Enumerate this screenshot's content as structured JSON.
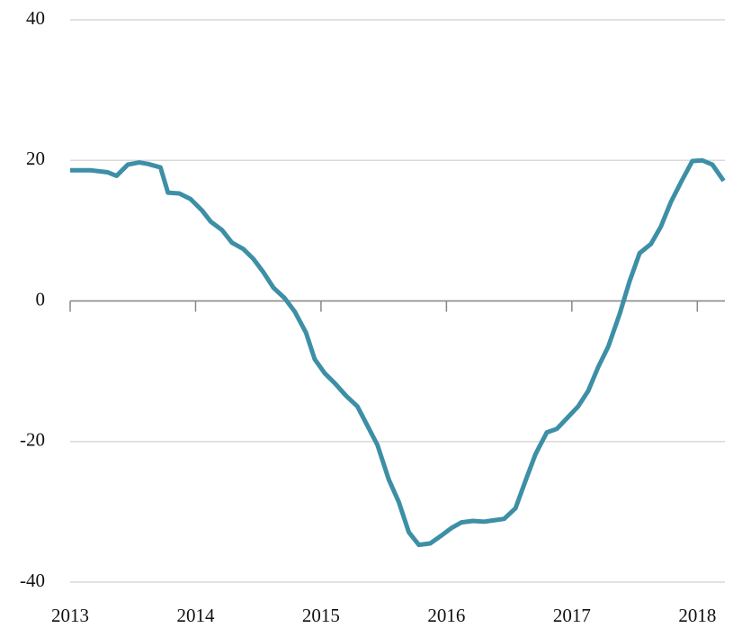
{
  "chart_data": {
    "type": "line",
    "x": [
      2013.0,
      2013.16,
      2013.3,
      2013.37,
      2013.46,
      2013.55,
      2013.62,
      2013.72,
      2013.78,
      2013.87,
      2013.96,
      2014.05,
      2014.12,
      2014.21,
      2014.29,
      2014.38,
      2014.46,
      2014.54,
      2014.62,
      2014.71,
      2014.79,
      2014.88,
      2014.95,
      2015.03,
      2015.11,
      2015.2,
      2015.29,
      2015.36,
      2015.45,
      2015.54,
      2015.62,
      2015.7,
      2015.78,
      2015.87,
      2015.95,
      2016.04,
      2016.12,
      2016.21,
      2016.3,
      2016.38,
      2016.46,
      2016.55,
      2016.63,
      2016.71,
      2016.8,
      2016.88,
      2016.96,
      2017.05,
      2017.13,
      2017.21,
      2017.29,
      2017.38,
      2017.46,
      2017.54,
      2017.63,
      2017.71,
      2017.79,
      2017.87,
      2017.96,
      2018.04,
      2018.12,
      2018.21
    ],
    "values": [
      18.6,
      18.6,
      18.3,
      17.8,
      19.4,
      19.7,
      19.5,
      19.0,
      15.4,
      15.3,
      14.5,
      12.9,
      11.3,
      10.1,
      8.3,
      7.4,
      6.0,
      4.1,
      1.9,
      0.4,
      -1.5,
      -4.5,
      -8.3,
      -10.3,
      -11.7,
      -13.5,
      -15.0,
      -17.4,
      -20.5,
      -25.4,
      -28.6,
      -32.9,
      -34.7,
      -34.5,
      -33.5,
      -32.3,
      -31.5,
      -31.3,
      -31.4,
      -31.2,
      -31.0,
      -29.5,
      -25.6,
      -21.8,
      -18.7,
      -18.2,
      -16.7,
      -15.0,
      -12.8,
      -9.4,
      -6.5,
      -1.9,
      2.8,
      6.8,
      8.1,
      10.6,
      14.1,
      16.9,
      19.9,
      20.0,
      19.4,
      17.1
    ],
    "color": "#3d8fa6",
    "xlim": [
      2013,
      2018.22
    ],
    "xticks": [
      2013,
      2014,
      2015,
      2016,
      2017,
      2018
    ],
    "ylim": [
      -40,
      40
    ],
    "yticks": [
      -40,
      -20,
      0,
      20,
      40
    ],
    "grid": true
  }
}
